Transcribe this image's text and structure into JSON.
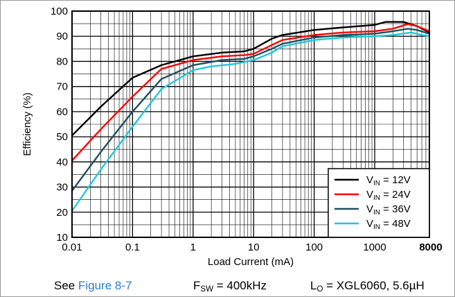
{
  "chart_data": {
    "type": "line",
    "title": "",
    "xlabel": "Load Current (mA)",
    "ylabel": "Efficiency (%)",
    "x_scale": "log",
    "xlim": [
      0.01,
      8000
    ],
    "ylim": [
      10,
      100
    ],
    "x_ticks": [
      "0.01",
      "0.1",
      "1",
      "10",
      "100",
      "1000",
      "8000"
    ],
    "y_ticks": [
      "10",
      "20",
      "30",
      "40",
      "50",
      "60",
      "70",
      "80",
      "90",
      "100"
    ],
    "grid": true,
    "legend_position": "bottom-right",
    "series": [
      {
        "name": "V_IN = 12V",
        "name_main": "V",
        "name_sub": "IN",
        "name_rest": " = 12V",
        "color": "#000000",
        "points": [
          [
            0.01,
            50.5
          ],
          [
            0.03,
            62
          ],
          [
            0.1,
            73.5
          ],
          [
            0.3,
            78.5
          ],
          [
            1,
            82
          ],
          [
            3,
            83.5
          ],
          [
            7,
            84
          ],
          [
            10,
            85
          ],
          [
            20,
            89
          ],
          [
            30,
            90.5
          ],
          [
            100,
            92.5
          ],
          [
            300,
            93.5
          ],
          [
            1000,
            94.5
          ],
          [
            1500,
            95.7
          ],
          [
            3000,
            95.7
          ],
          [
            5000,
            94
          ],
          [
            8000,
            91.5
          ]
        ]
      },
      {
        "name": "V_IN = 24V",
        "name_main": "V",
        "name_sub": "IN",
        "name_rest": " = 24V",
        "color": "#ff0000",
        "points": [
          [
            0.01,
            40.5
          ],
          [
            0.03,
            53
          ],
          [
            0.1,
            66
          ],
          [
            0.3,
            77
          ],
          [
            1,
            80.5
          ],
          [
            3,
            82
          ],
          [
            7,
            82.5
          ],
          [
            10,
            83
          ],
          [
            20,
            86.5
          ],
          [
            30,
            88.5
          ],
          [
            100,
            90.5
          ],
          [
            300,
            91.5
          ],
          [
            1000,
            92
          ],
          [
            2000,
            93
          ],
          [
            3500,
            94.8
          ],
          [
            5000,
            94
          ],
          [
            8000,
            92
          ]
        ]
      },
      {
        "name": "V_IN = 36V",
        "name_main": "V",
        "name_sub": "IN",
        "name_rest": " = 36V",
        "color": "#1f4e5e",
        "points": [
          [
            0.01,
            28.5
          ],
          [
            0.03,
            44
          ],
          [
            0.1,
            60
          ],
          [
            0.3,
            73
          ],
          [
            1,
            78.5
          ],
          [
            3,
            80.5
          ],
          [
            7,
            81
          ],
          [
            10,
            82
          ],
          [
            20,
            85
          ],
          [
            30,
            87
          ],
          [
            100,
            89.5
          ],
          [
            300,
            90.5
          ],
          [
            1000,
            91
          ],
          [
            2000,
            92
          ],
          [
            3500,
            93
          ],
          [
            5000,
            92.5
          ],
          [
            8000,
            91
          ]
        ]
      },
      {
        "name": "V_IN = 48V",
        "name_main": "V",
        "name_sub": "IN",
        "name_rest": " = 48V",
        "color": "#1ec8d8",
        "points": [
          [
            0.01,
            20.5
          ],
          [
            0.03,
            37
          ],
          [
            0.1,
            54
          ],
          [
            0.3,
            69
          ],
          [
            1,
            76.5
          ],
          [
            2,
            78
          ],
          [
            5,
            79
          ],
          [
            10,
            80.5
          ],
          [
            20,
            83.5
          ],
          [
            30,
            86
          ],
          [
            100,
            88.5
          ],
          [
            300,
            89.5
          ],
          [
            1000,
            90
          ],
          [
            2000,
            90.5
          ],
          [
            4000,
            91.5
          ],
          [
            6000,
            90.5
          ],
          [
            8000,
            90
          ]
        ]
      }
    ]
  },
  "caption": {
    "see_prefix": "See ",
    "see_link": "Figure 8-7",
    "fsw_main": "F",
    "fsw_sub": "SW",
    "fsw_rest": " = 400kHz",
    "lo_main": "L",
    "lo_sub": "O",
    "lo_rest": " = XGL6060, 5.6µH"
  }
}
